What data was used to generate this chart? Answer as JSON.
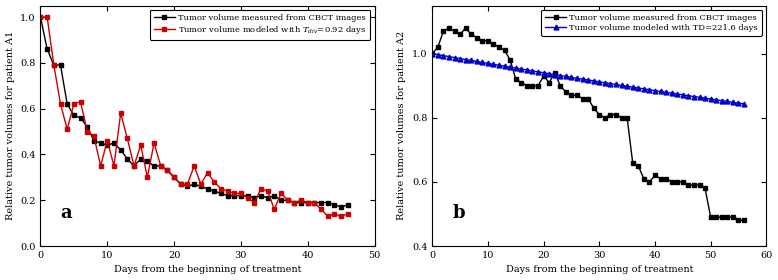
{
  "panel_a": {
    "title": "a",
    "xlabel": "Days from the beginning of treatment",
    "ylabel": "Relative tumor volumes for patient A1",
    "xlim": [
      0,
      50
    ],
    "ylim": [
      0,
      1.05
    ],
    "yticks": [
      0,
      0.2,
      0.4,
      0.6,
      0.8,
      1.0
    ],
    "xticks": [
      0,
      10,
      20,
      30,
      40,
      50
    ],
    "measured_x": [
      0,
      1,
      2,
      3,
      4,
      5,
      6,
      7,
      8,
      9,
      10,
      11,
      12,
      13,
      14,
      15,
      16,
      17,
      18,
      19,
      20,
      21,
      22,
      23,
      24,
      25,
      26,
      27,
      28,
      29,
      30,
      31,
      32,
      33,
      34,
      35,
      36,
      37,
      38,
      39,
      40,
      41,
      42,
      43,
      44,
      45,
      46
    ],
    "measured_y": [
      1.0,
      0.86,
      0.79,
      0.79,
      0.62,
      0.57,
      0.56,
      0.52,
      0.46,
      0.45,
      0.44,
      0.45,
      0.42,
      0.38,
      0.35,
      0.38,
      0.37,
      0.35,
      0.35,
      0.33,
      0.3,
      0.27,
      0.26,
      0.27,
      0.26,
      0.25,
      0.24,
      0.23,
      0.22,
      0.22,
      0.22,
      0.22,
      0.21,
      0.22,
      0.21,
      0.22,
      0.2,
      0.2,
      0.19,
      0.19,
      0.19,
      0.19,
      0.19,
      0.19,
      0.18,
      0.17,
      0.18
    ],
    "modeled_x": [
      0,
      1,
      2,
      3,
      4,
      5,
      6,
      7,
      8,
      9,
      10,
      11,
      12,
      13,
      14,
      15,
      16,
      17,
      18,
      19,
      20,
      21,
      22,
      23,
      24,
      25,
      26,
      27,
      28,
      29,
      30,
      31,
      32,
      33,
      34,
      35,
      36,
      37,
      38,
      39,
      40,
      41,
      42,
      43,
      44,
      45,
      46
    ],
    "modeled_y": [
      1.0,
      1.0,
      0.79,
      0.62,
      0.51,
      0.62,
      0.63,
      0.5,
      0.48,
      0.35,
      0.46,
      0.35,
      0.58,
      0.47,
      0.35,
      0.44,
      0.3,
      0.45,
      0.35,
      0.33,
      0.3,
      0.27,
      0.27,
      0.35,
      0.27,
      0.32,
      0.28,
      0.25,
      0.24,
      0.23,
      0.23,
      0.21,
      0.19,
      0.25,
      0.24,
      0.16,
      0.23,
      0.2,
      0.19,
      0.2,
      0.19,
      0.19,
      0.16,
      0.13,
      0.14,
      0.13,
      0.14
    ],
    "legend1": "Tumor volume measured from CBCT images",
    "legend2": "Tumor volume modeled with $T_{div}$=0.92 days",
    "measured_color": "#000000",
    "modeled_color": "#cc0000"
  },
  "panel_b": {
    "title": "b",
    "xlabel": "Days from the beginning of treatment",
    "ylabel": "Relative tumor volumes for patient A2",
    "xlim": [
      0,
      60
    ],
    "ylim": [
      0.4,
      1.15
    ],
    "yticks": [
      0.4,
      0.6,
      0.8,
      1.0
    ],
    "xticks": [
      0,
      10,
      20,
      30,
      40,
      50,
      60
    ],
    "measured_x": [
      0,
      1,
      2,
      3,
      4,
      5,
      6,
      7,
      8,
      9,
      10,
      11,
      12,
      13,
      14,
      15,
      16,
      17,
      18,
      19,
      20,
      21,
      22,
      23,
      24,
      25,
      26,
      27,
      28,
      29,
      30,
      31,
      32,
      33,
      34,
      35,
      36,
      37,
      38,
      39,
      40,
      41,
      42,
      43,
      44,
      45,
      46,
      47,
      48,
      49,
      50,
      51,
      52,
      53,
      54,
      55,
      56
    ],
    "measured_y": [
      1.0,
      1.02,
      1.07,
      1.08,
      1.07,
      1.06,
      1.08,
      1.06,
      1.05,
      1.04,
      1.04,
      1.03,
      1.02,
      1.01,
      0.98,
      0.92,
      0.91,
      0.9,
      0.9,
      0.9,
      0.93,
      0.91,
      0.94,
      0.9,
      0.88,
      0.87,
      0.87,
      0.86,
      0.86,
      0.83,
      0.81,
      0.8,
      0.81,
      0.81,
      0.8,
      0.8,
      0.66,
      0.65,
      0.61,
      0.6,
      0.62,
      0.61,
      0.61,
      0.6,
      0.6,
      0.6,
      0.59,
      0.59,
      0.59,
      0.58,
      0.49,
      0.49,
      0.49,
      0.49,
      0.49,
      0.48,
      0.48
    ],
    "modeled_x": [
      0,
      1,
      2,
      3,
      4,
      5,
      6,
      7,
      8,
      9,
      10,
      11,
      12,
      13,
      14,
      15,
      16,
      17,
      18,
      19,
      20,
      21,
      22,
      23,
      24,
      25,
      26,
      27,
      28,
      29,
      30,
      31,
      32,
      33,
      34,
      35,
      36,
      37,
      38,
      39,
      40,
      41,
      42,
      43,
      44,
      45,
      46,
      47,
      48,
      49,
      50,
      51,
      52,
      53,
      54,
      55,
      56
    ],
    "modeled_y": [
      1.0,
      0.9969,
      0.9938,
      0.9908,
      0.9877,
      0.9847,
      0.9817,
      0.9787,
      0.9757,
      0.9727,
      0.9697,
      0.9667,
      0.9638,
      0.9608,
      0.9579,
      0.9549,
      0.952,
      0.9491,
      0.9462,
      0.9433,
      0.9404,
      0.9375,
      0.9347,
      0.9318,
      0.929,
      0.9261,
      0.9233,
      0.9205,
      0.9177,
      0.9149,
      0.9121,
      0.9093,
      0.9065,
      0.9038,
      0.901,
      0.8983,
      0.8956,
      0.8929,
      0.8902,
      0.8875,
      0.8848,
      0.8821,
      0.8795,
      0.8768,
      0.8742,
      0.8715,
      0.8689,
      0.8663,
      0.8637,
      0.8611,
      0.8585,
      0.8559,
      0.8534,
      0.8508,
      0.8483,
      0.8457,
      0.8432
    ],
    "legend1": "Tumor volume measured from CBCT images",
    "legend2": "Tumor volume modeled with TD=221.6 days",
    "measured_color": "#000000",
    "modeled_color": "#0000cc"
  }
}
